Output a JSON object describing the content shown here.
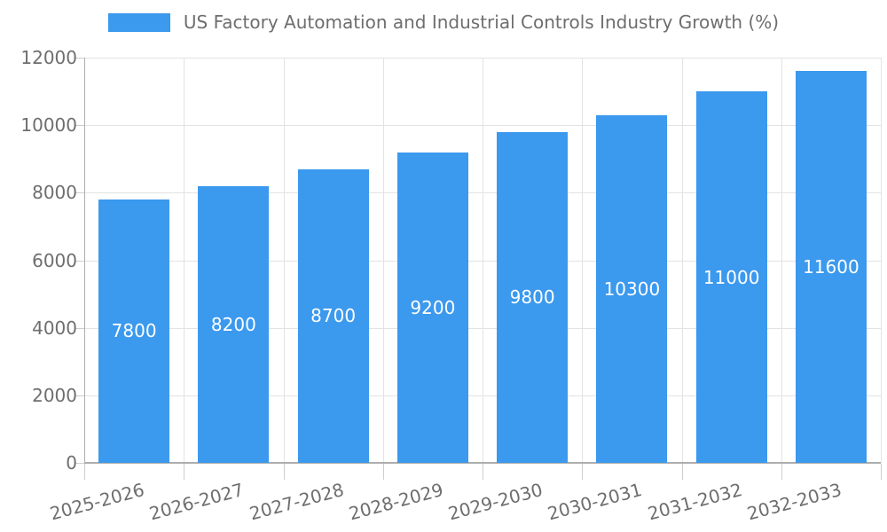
{
  "chart_data": {
    "type": "bar",
    "title": "US Factory Automation and Industrial Controls Industry Growth (%)",
    "legend_label": "US Factory Automation and Industrial Controls Industry Growth (%)",
    "categories": [
      "2025-2026",
      "2026-2027",
      "2027-2028",
      "2028-2029",
      "2029-2030",
      "2030-2031",
      "2031-2032",
      "2032-2033"
    ],
    "values": [
      7800,
      8200,
      8700,
      9200,
      9800,
      10300,
      11000,
      11600
    ],
    "bar_labels": [
      "7800",
      "8200",
      "8700",
      "9200",
      "9800",
      "10300",
      "11000",
      "11600"
    ],
    "xlabel": "",
    "ylabel": "",
    "ylim": [
      0,
      12000
    ],
    "yticks": [
      0,
      2000,
      4000,
      6000,
      8000,
      10000,
      12000
    ],
    "ytick_labels": [
      "0",
      "2000",
      "4000",
      "6000",
      "8000",
      "10000",
      "12000"
    ],
    "grid": true,
    "legend_position": "top-center",
    "x_tick_rotation_deg": -15,
    "colors": {
      "bar": "#3B99EE",
      "bar_label": "#FFFFFF",
      "tick_label": "#6E6E6E",
      "legend_label": "#6E6E6E",
      "gridline": "#E3E3E3",
      "axis_line": "#ADADAD",
      "tick_mark": "#CDCDCD",
      "background": "#FFFFFF"
    }
  }
}
